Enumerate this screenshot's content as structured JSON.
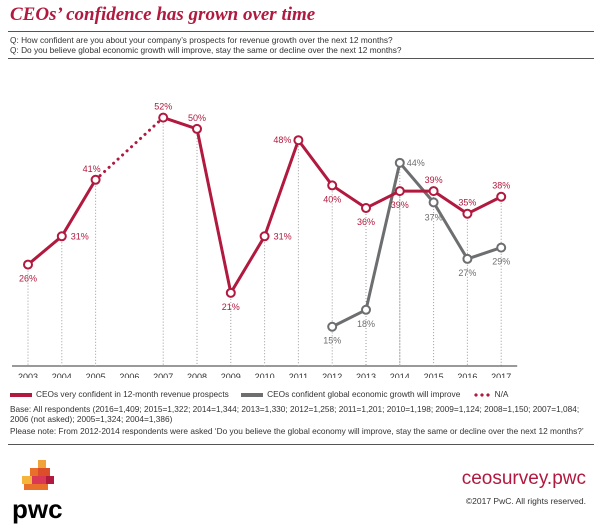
{
  "title": "CEOs’ confidence has grown over time",
  "questions": [
    "Q: How confident are you about your company’s prospects for revenue growth over the next 12 months?",
    "Q: Do you believe global economic growth will improve, stay the same or decline over the next 12 months?"
  ],
  "legend": {
    "series1": "CEOs very confident in 12-month revenue prospects",
    "series2": "CEOs confident global economic growth will improve",
    "na": "N/A"
  },
  "base_note": "Base: All respondents (2016=1,409; 2015=1,322; 2014=1,344; 2013=1,330; 2012=1,258; 2011=1,201; 2010=1,198; 2009=1,124; 2008=1,150; 2007=1,084;",
  "base_note2": "2006 (not asked); 2005=1,324; 2004=1,386)",
  "please_note": "Please note: From 2012-2014 respondents were asked ‘Do you believe the global economy will improve, stay the same or decline over the next 12 months?’",
  "footer": {
    "site": "ceosurvey.pwc",
    "copyright": "©2017 PwC. All rights reserved.",
    "logo_text": "pwc"
  },
  "colors": {
    "series1": "#b1193e",
    "series2": "#6d6e70",
    "brand": "#b1193e",
    "logo_orange": "#e8702a"
  },
  "chart_data": {
    "type": "line",
    "categories": [
      "2003",
      "2004",
      "2005",
      "2006",
      "2007",
      "2008",
      "2009",
      "2010",
      "2011",
      "2012",
      "2013",
      "2014",
      "2015",
      "2016",
      "2017"
    ],
    "ylim": [
      10,
      56
    ],
    "grid": false,
    "series": [
      {
        "name": "CEOs very confident in 12-month revenue prospects",
        "values": [
          26,
          31,
          41,
          null,
          52,
          50,
          21,
          31,
          48,
          40,
          36,
          39,
          39,
          35,
          38
        ],
        "labels": [
          "26%",
          "31%",
          "41%",
          "",
          "52%",
          "50%",
          "21%",
          "31%",
          "48%",
          "40%",
          "36%",
          "39%",
          "39%",
          "35%",
          "38%"
        ],
        "na_gap": {
          "from": "2005",
          "to": "2007"
        }
      },
      {
        "name": "CEOs confident global economic growth will improve",
        "values": [
          null,
          null,
          null,
          null,
          null,
          null,
          null,
          null,
          null,
          15,
          18,
          44,
          37,
          27,
          29
        ],
        "labels": [
          "",
          "",
          "",
          "",
          "",
          "",
          "",
          "",
          "",
          "15%",
          "18%",
          "44%",
          "37%",
          "27%",
          "29%"
        ]
      }
    ]
  }
}
